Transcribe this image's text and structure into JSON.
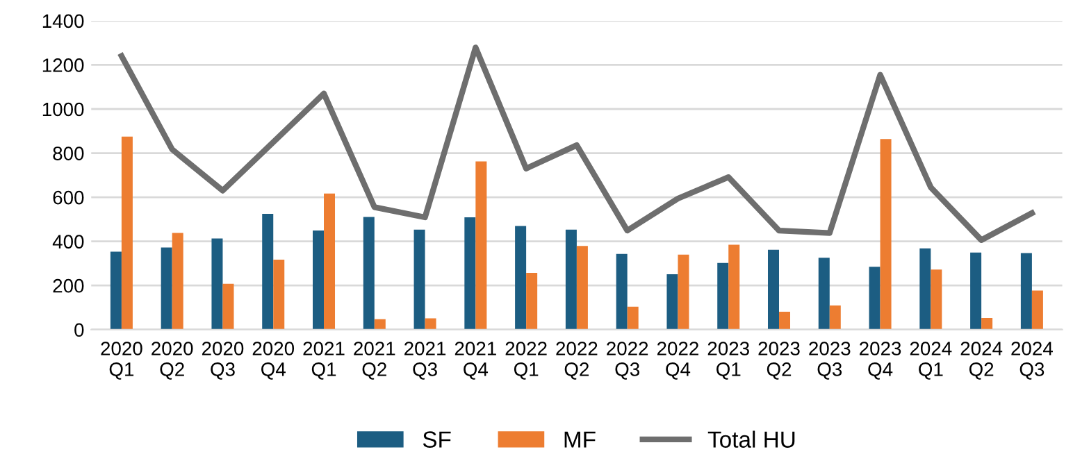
{
  "chart_data": {
    "type": "bar",
    "categories": [
      "2020\nQ1",
      "2020\nQ2",
      "2020\nQ3",
      "2020\nQ4",
      "2021\nQ1",
      "2021\nQ2",
      "2021\nQ3",
      "2021\nQ4",
      "2022\nQ1",
      "2022\nQ2",
      "2022\nQ3",
      "2022\nQ4",
      "2023\nQ1",
      "2023\nQ2",
      "2023\nQ3",
      "2023\nQ4",
      "2024\nQ1",
      "2024\nQ2",
      "2024\nQ3"
    ],
    "series": [
      {
        "name": "SF",
        "color": "#1c5d82",
        "values": [
          353,
          372,
          413,
          525,
          449,
          511,
          453,
          509,
          470,
          453,
          343,
          251,
          302,
          362,
          326,
          285,
          368,
          349,
          347
        ]
      },
      {
        "name": "MF",
        "color": "#ed7d31",
        "values": [
          875,
          438,
          208,
          317,
          617,
          47,
          51,
          762,
          257,
          379,
          104,
          340,
          385,
          81,
          109,
          864,
          272,
          53,
          177
        ]
      },
      {
        "name": "Total HU",
        "type": "line",
        "color": "#6e6e6e",
        "values": [
          1240,
          817,
          630,
          850,
          1070,
          555,
          509,
          1279,
          730,
          836,
          449,
          594,
          691,
          449,
          438,
          1155,
          645,
          406,
          528
        ]
      }
    ],
    "ylim": [
      0,
      1400
    ],
    "yticks": [
      0,
      200,
      400,
      600,
      800,
      1000,
      1200,
      1400
    ],
    "grid": "y",
    "legend": "bottom",
    "marker": "none",
    "line_style": "solid"
  }
}
